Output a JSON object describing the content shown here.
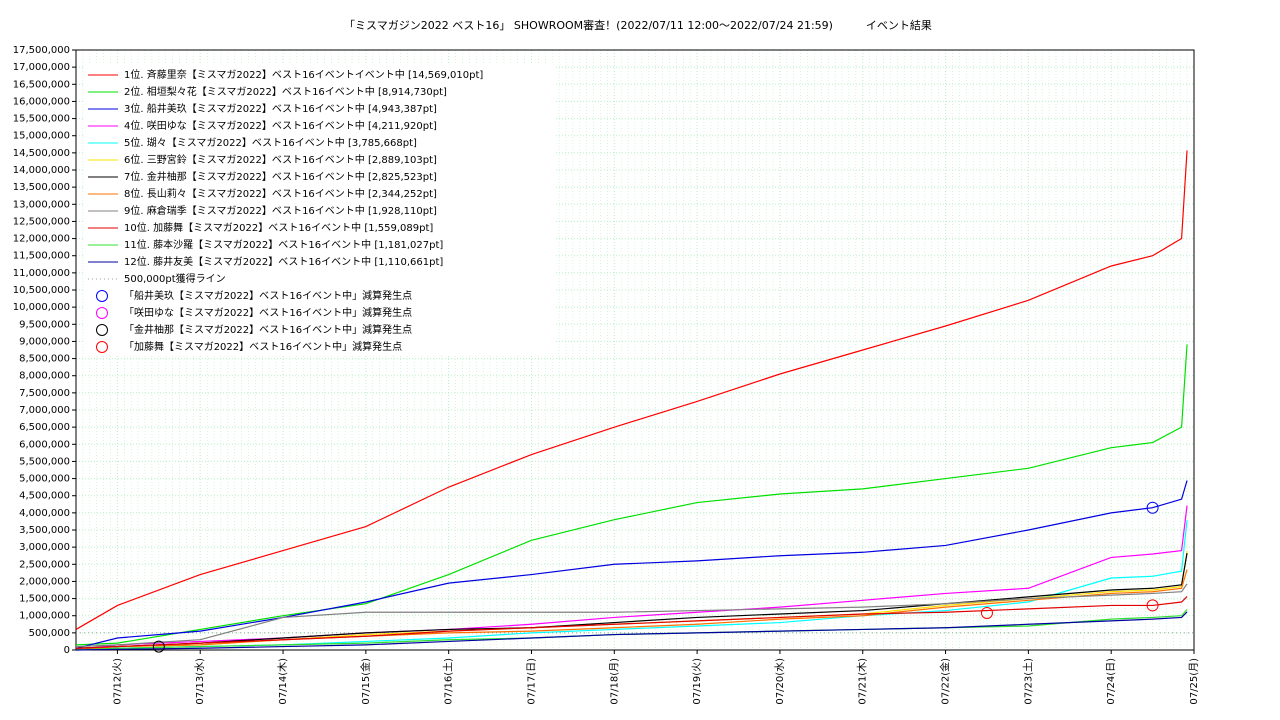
{
  "chart_data": {
    "type": "line",
    "title": "「ミスマガジン2022 ベスト16」 SHOWROOM審査！(2022/07/11 12:00〜2022/07/24 21:59)　　　イベント結果",
    "x": [
      -0.5,
      0,
      1,
      2,
      3,
      4,
      5,
      6,
      7,
      8,
      9,
      10,
      11,
      12,
      12.5,
      12.85,
      12.916
    ],
    "xlim": [
      -0.5,
      13
    ],
    "xticks": [
      {
        "value": 0,
        "label": "07/12(火)"
      },
      {
        "value": 1,
        "label": "07/13(水)"
      },
      {
        "value": 2,
        "label": "07/14(木)"
      },
      {
        "value": 3,
        "label": "07/15(金)"
      },
      {
        "value": 4,
        "label": "07/16(土)"
      },
      {
        "value": 5,
        "label": "07/17(日)"
      },
      {
        "value": 6,
        "label": "07/18(月)"
      },
      {
        "value": 7,
        "label": "07/19(火)"
      },
      {
        "value": 8,
        "label": "07/20(水)"
      },
      {
        "value": 9,
        "label": "07/21(木)"
      },
      {
        "value": 10,
        "label": "07/22(金)"
      },
      {
        "value": 11,
        "label": "07/23(土)"
      },
      {
        "value": 12,
        "label": "07/24(日)"
      },
      {
        "value": 13,
        "label": "07/25(月)"
      }
    ],
    "ylim": [
      0,
      17500000
    ],
    "yticks": [
      0,
      {
        "value": 500000,
        "label": "500,000"
      },
      {
        "value": 1000000,
        "label": "1,000,000"
      },
      {
        "value": 1500000,
        "label": "1,500,000"
      },
      {
        "value": 2000000,
        "label": "2,000,000"
      },
      {
        "value": 2500000,
        "label": "2,500,000"
      },
      {
        "value": 3000000,
        "label": "3,000,000"
      },
      {
        "value": 3500000,
        "label": "3,500,000"
      },
      {
        "value": 4000000,
        "label": "4,000,000"
      },
      {
        "value": 4500000,
        "label": "4,500,000"
      },
      {
        "value": 5000000,
        "label": "5,000,000"
      },
      {
        "value": 5500000,
        "label": "5,500,000"
      },
      {
        "value": 6000000,
        "label": "6,000,000"
      },
      {
        "value": 6500000,
        "label": "6,500,000"
      },
      {
        "value": 7000000,
        "label": "7,000,000"
      },
      {
        "value": 7500000,
        "label": "7,500,000"
      },
      {
        "value": 8000000,
        "label": "8,000,000"
      },
      {
        "value": 8500000,
        "label": "8,500,000"
      },
      {
        "value": 9000000,
        "label": "9,000,000"
      },
      {
        "value": 9500000,
        "label": "9,500,000"
      },
      {
        "value": 10000000,
        "label": "10,000,000"
      },
      {
        "value": 10500000,
        "label": "10,500,000"
      },
      {
        "value": 11000000,
        "label": "11,000,000"
      },
      {
        "value": 11500000,
        "label": "11,500,000"
      },
      {
        "value": 12000000,
        "label": "12,000,000"
      },
      {
        "value": 12500000,
        "label": "12,500,000"
      },
      {
        "value": 13000000,
        "label": "13,000,000"
      },
      {
        "value": 13500000,
        "label": "13,500,000"
      },
      {
        "value": 14000000,
        "label": "14,000,000"
      },
      {
        "value": 14500000,
        "label": "14,500,000"
      },
      {
        "value": 15000000,
        "label": "15,000,000"
      },
      {
        "value": 15500000,
        "label": "15,500,000"
      },
      {
        "value": 16000000,
        "label": "16,000,000"
      },
      {
        "value": 16500000,
        "label": "16,500,000"
      },
      {
        "value": 17000000,
        "label": "17,000,000"
      },
      {
        "value": 17500000,
        "label": "17,500,000"
      }
    ],
    "grid": true,
    "grid_color": "#b8f0c8",
    "legend": "upper-left",
    "series": [
      {
        "name": " 1位. 斉藤里奈【ミスマガ2022】ベスト16イベントイベント中 [14,569,010pt]",
        "color": "#ff0000",
        "values": [
          600000,
          1300000,
          2200000,
          2900000,
          3600000,
          4750000,
          5700000,
          6500000,
          7250000,
          8050000,
          8750000,
          9450000,
          10200000,
          11200000,
          11500000,
          12000000,
          14569010
        ]
      },
      {
        "name": " 2位. 相垣梨々花【ミスマガ2022】ベスト16イベント中 [8,914,730pt]",
        "color": "#00e000",
        "values": [
          150000,
          200000,
          600000,
          1000000,
          1350000,
          2200000,
          3200000,
          3800000,
          4300000,
          4550000,
          4700000,
          5000000,
          5300000,
          5900000,
          6050000,
          6500000,
          8914730
        ]
      },
      {
        "name": " 3位. 船井美玖【ミスマガ2022】ベスト16イベント中 [4,943,387pt]",
        "color": "#0000e0",
        "values": [
          50000,
          350000,
          550000,
          950000,
          1400000,
          1950000,
          2200000,
          2500000,
          2600000,
          2750000,
          2850000,
          3050000,
          3500000,
          4000000,
          4150000,
          4400000,
          4943387
        ]
      },
      {
        "name": " 4位. 咲田ゆな【ミスマガ2022】ベスト16イベント中 [4,211,920pt]",
        "color": "#ff00ff",
        "values": [
          0,
          150000,
          250000,
          350000,
          500000,
          600000,
          750000,
          950000,
          1100000,
          1250000,
          1450000,
          1650000,
          1800000,
          2700000,
          2800000,
          2900000,
          4211920
        ]
      },
      {
        "name": " 5位. 瑚々【ミスマガ2022】ベスト16イベント中 [3,785,668pt]",
        "color": "#00ffff",
        "values": [
          0,
          50000,
          100000,
          150000,
          250000,
          350000,
          500000,
          600000,
          700000,
          800000,
          1000000,
          1150000,
          1400000,
          2100000,
          2150000,
          2300000,
          3785668
        ]
      },
      {
        "name": " 6位. 三野宮鈴【ミスマガ2022】ベスト16イベント中 [2,889,103pt]",
        "color": "#ffe000",
        "values": [
          0,
          100000,
          150000,
          300000,
          450000,
          550000,
          650000,
          750000,
          850000,
          950000,
          1050000,
          1300000,
          1500000,
          1700000,
          1750000,
          1850000,
          2889103
        ]
      },
      {
        "name": " 7位. 金井柚那【ミスマガ2022】ベスト16イベント中 [2,825,523pt]",
        "color": "#000000",
        "values": [
          50000,
          100000,
          200000,
          350000,
          500000,
          600000,
          650000,
          800000,
          950000,
          1050000,
          1150000,
          1350000,
          1550000,
          1750000,
          1800000,
          1900000,
          2825523
        ]
      },
      {
        "name": " 8位. 長山莉々【ミスマガ2022】ベスト16イベント中 [2,344,252pt]",
        "color": "#ff7000",
        "values": [
          0,
          100000,
          150000,
          300000,
          400000,
          500000,
          550000,
          650000,
          750000,
          900000,
          1000000,
          1250000,
          1450000,
          1650000,
          1700000,
          1800000,
          2344252
        ]
      },
      {
        "name": " 9位. 麻倉瑞季【ミスマガ2022】ベスト16イベント中 [1,928,110pt]",
        "color": "#808080",
        "values": [
          100000,
          150000,
          300000,
          950000,
          1100000,
          1100000,
          1100000,
          1100000,
          1150000,
          1200000,
          1250000,
          1350000,
          1500000,
          1600000,
          1650000,
          1700000,
          1928110
        ]
      },
      {
        "name": "10位. 加藤舞【ミスマガ2022】ベスト16イベント中 [1,559,089pt]",
        "color": "#e00000",
        "values": [
          50000,
          100000,
          200000,
          300000,
          400000,
          550000,
          650000,
          750000,
          850000,
          950000,
          1050000,
          1100000,
          1200000,
          1300000,
          1300000,
          1400000,
          1559089
        ]
      },
      {
        "name": "11位. 藤本沙羅【ミスマガ2022】ベスト16イベント中 [1,181,027pt]",
        "color": "#30e030",
        "values": [
          0,
          50000,
          100000,
          150000,
          200000,
          300000,
          350000,
          450000,
          500000,
          550000,
          600000,
          650000,
          700000,
          900000,
          950000,
          1000000,
          1181027
        ]
      },
      {
        "name": "12位. 藤井友美【ミスマガ2022】ベスト16イベント中 [1,110,661pt]",
        "color": "#0000a0",
        "values": [
          0,
          20000,
          50000,
          100000,
          150000,
          250000,
          350000,
          450000,
          500000,
          550000,
          600000,
          650000,
          750000,
          850000,
          900000,
          950000,
          1110661
        ]
      }
    ],
    "reference_line": {
      "name": "500,000pt獲得ライン",
      "value": 500000,
      "color": "#a0a0a0"
    },
    "markers": [
      {
        "name": "「船井美玖【ミスマガ2022】ベスト16イベント中」減算発生点",
        "color": "#0000ff",
        "points": [
          {
            "x": 12.5,
            "y": 4150000
          }
        ]
      },
      {
        "name": "「咲田ゆな【ミスマガ2022】ベスト16イベント中」減算発生点",
        "color": "#ff00ff",
        "points": []
      },
      {
        "name": "「金井柚那【ミスマガ2022】ベスト16イベント中」減算発生点",
        "color": "#000000",
        "points": [
          {
            "x": 0.5,
            "y": 100000
          }
        ]
      },
      {
        "name": "「加藤舞【ミスマガ2022】ベスト16イベント中」減算発生点",
        "color": "#ff0000",
        "points": [
          {
            "x": 10.5,
            "y": 1080000
          },
          {
            "x": 12.5,
            "y": 1300000
          }
        ]
      }
    ]
  }
}
